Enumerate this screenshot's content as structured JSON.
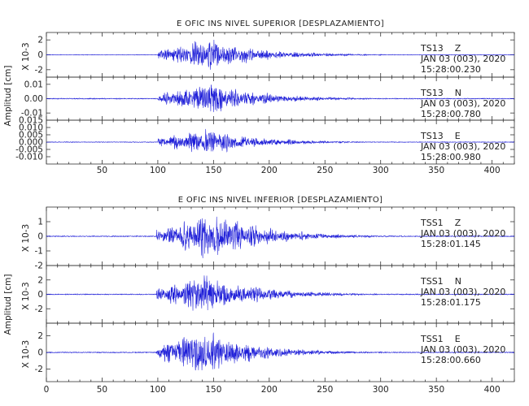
{
  "chart_data": [
    {
      "type": "line",
      "title": "E OFIC INS NIVEL SUPERIOR [DESPLAZAMIENTO]",
      "ylabel": "Amplitud [cm]",
      "xlim": [
        0,
        420
      ],
      "x_ticks": [
        "50",
        "100",
        "150",
        "200",
        "250",
        "300",
        "350",
        "400"
      ],
      "panels": [
        {
          "station": "TS13",
          "component": "Z",
          "date": "JAN 03 (003), 2020",
          "time": "15:28:00.230",
          "scale_label": "X 10-3",
          "ylim": [
            -3,
            3
          ],
          "y_ticks": [
            "2",
            "0",
            "-2"
          ],
          "series": {
            "onset": 100,
            "peak_time": 145,
            "peak_amp": 2.6,
            "noise": 0.05,
            "seed": 11
          }
        },
        {
          "station": "TS13",
          "component": "N",
          "date": "JAN 03 (003), 2020",
          "time": "15:28:00.780",
          "scale_label": "",
          "ylim": [
            -0.015,
            0.015
          ],
          "y_ticks": [
            "0.01",
            "0.00",
            "-0.01"
          ],
          "series": {
            "onset": 100,
            "peak_time": 148,
            "peak_amp": 0.013,
            "noise": 0.0004,
            "seed": 23
          }
        },
        {
          "station": "TS13",
          "component": "E",
          "date": "JAN 03 (003), 2020",
          "time": "15:28:00.980",
          "scale_label": "",
          "ylim": [
            -0.015,
            0.015
          ],
          "y_ticks": [
            "0.015",
            "0.010",
            "0.005",
            "0.000",
            "-0.005",
            "-0.010"
          ],
          "series": {
            "onset": 100,
            "peak_time": 145,
            "peak_amp": 0.011,
            "noise": 0.0003,
            "seed": 37
          }
        }
      ]
    },
    {
      "type": "line",
      "title": "E OFIC INS NIVEL INFERIOR [DESPLAZAMIENTO]",
      "ylabel": "Amplitud [cm]",
      "xlim": [
        0,
        420
      ],
      "x_ticks": [
        "0",
        "50",
        "100",
        "150",
        "200",
        "250",
        "300",
        "350",
        "400"
      ],
      "panels": [
        {
          "station": "TSS1",
          "component": "Z",
          "date": "JAN 03 (003), 2020",
          "time": "15:28:01.145",
          "scale_label": "X 10-3",
          "ylim": [
            -2,
            2
          ],
          "y_ticks": [
            "1",
            "0",
            "-1",
            "-2"
          ],
          "series": {
            "onset": 99,
            "peak_time": 150,
            "peak_amp": 1.9,
            "noise": 0.04,
            "seed": 41
          }
        },
        {
          "station": "TSS1",
          "component": "N",
          "date": "JAN 03 (003), 2020",
          "time": "15:28:01.175",
          "scale_label": "X 10-3",
          "ylim": [
            -4,
            4
          ],
          "y_ticks": [
            "2",
            "0",
            "-2"
          ],
          "series": {
            "onset": 99,
            "peak_time": 142,
            "peak_amp": 3.6,
            "noise": 0.08,
            "seed": 53
          }
        },
        {
          "station": "TSS1",
          "component": "E",
          "date": "JAN 03 (003), 2020",
          "time": "15:28:00.660",
          "scale_label": "X 10-3",
          "ylim": [
            -3.5,
            3.5
          ],
          "y_ticks": [
            "2",
            "0",
            "-2"
          ],
          "series": {
            "onset": 99,
            "peak_time": 140,
            "peak_amp": 3.2,
            "noise": 0.07,
            "seed": 67
          }
        }
      ]
    }
  ],
  "colors": {
    "trace": "#1d1dd8",
    "frame": "#333333",
    "text": "#222222"
  }
}
